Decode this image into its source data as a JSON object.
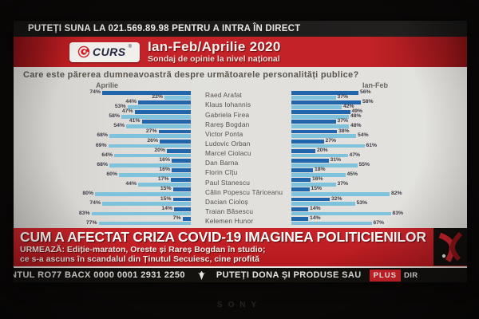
{
  "colors": {
    "dark_blue": "#2166ad",
    "light_blue": "#7fc2dc",
    "banner_red": "#c0272d",
    "ticker_black": "#14120f"
  },
  "top_bar": {
    "text": "PUTEȚI SUNA LA 021.569.89.98 PENTRU A INTRA ÎN DIRECT"
  },
  "header": {
    "logo_text": "CURS",
    "logo_reg": "®",
    "title": "Ian-Feb/Aprilie 2020",
    "subtitle": "Sondaj de opinie la nivel național"
  },
  "chart_data": {
    "type": "bar",
    "orientation": "horizontal-butterfly",
    "title": "Ian-Feb/Aprilie 2020",
    "subtitle": "Sondaj de opinie la nivel național",
    "question": "Care este părerea dumneavoastră despre următoarele personalități publice?",
    "panel_headers": [
      "Aprilie",
      "Ian-Feb"
    ],
    "value_suffix": "%",
    "xlim": [
      0,
      100
    ],
    "grid": false,
    "legend": "none",
    "categories": [
      "Raed Arafat",
      "Klaus Iohannis",
      "Gabriela Firea",
      "Rareș Bogdan",
      "Victor Ponta",
      "Ludovic Orban",
      "Marcel Ciolacu",
      "Dan Barna",
      "Florin Cîțu",
      "Paul Stanescu",
      "Călin Popescu Tăriceanu",
      "Dacian Cioloș",
      "Traian Băsescu",
      "Kelemen Hunor"
    ],
    "series": [
      {
        "id": "aprilie-dark",
        "panel": "Aprilie",
        "shade": "dark",
        "values": [
          74,
          44,
          47,
          41,
          27,
          26,
          20,
          16,
          16,
          17,
          15,
          15,
          14,
          7
        ]
      },
      {
        "id": "aprilie-light",
        "panel": "Aprilie",
        "shade": "light",
        "values": [
          22,
          53,
          58,
          54,
          68,
          69,
          64,
          68,
          60,
          44,
          80,
          74,
          83,
          77
        ]
      },
      {
        "id": "ianfeb-dark",
        "panel": "Ian-Feb",
        "shade": "dark",
        "values": [
          56,
          58,
          49,
          37,
          38,
          27,
          20,
          31,
          18,
          16,
          15,
          32,
          14,
          14
        ]
      },
      {
        "id": "ianfeb-light",
        "panel": "Ian-Feb",
        "shade": "light",
        "values": [
          37,
          42,
          48,
          48,
          54,
          61,
          47,
          55,
          45,
          37,
          82,
          53,
          83,
          67
        ]
      }
    ]
  },
  "banner": {
    "headline": "CUM A AFECTAT CRIZA COVID-19 IMAGINEA POLITICIENILOR",
    "urmeaza_line1": "URMEAZĂ: Ediție-maraton, Oreste și Rareș Bogdan în studio;",
    "urmeaza_line2": "ce s-a ascuns în scandalul din Ținutul Secuiesc, cine profită"
  },
  "ticker": {
    "account_text": "NTUL RO77 BACX 0000 0001 2931 2250",
    "donate_text": "PUTEȚI DONA ȘI PRODUSE SAU",
    "plus_label": "PLUS",
    "dir_label": "DIR"
  },
  "bezel": {
    "brand": "SONY"
  }
}
